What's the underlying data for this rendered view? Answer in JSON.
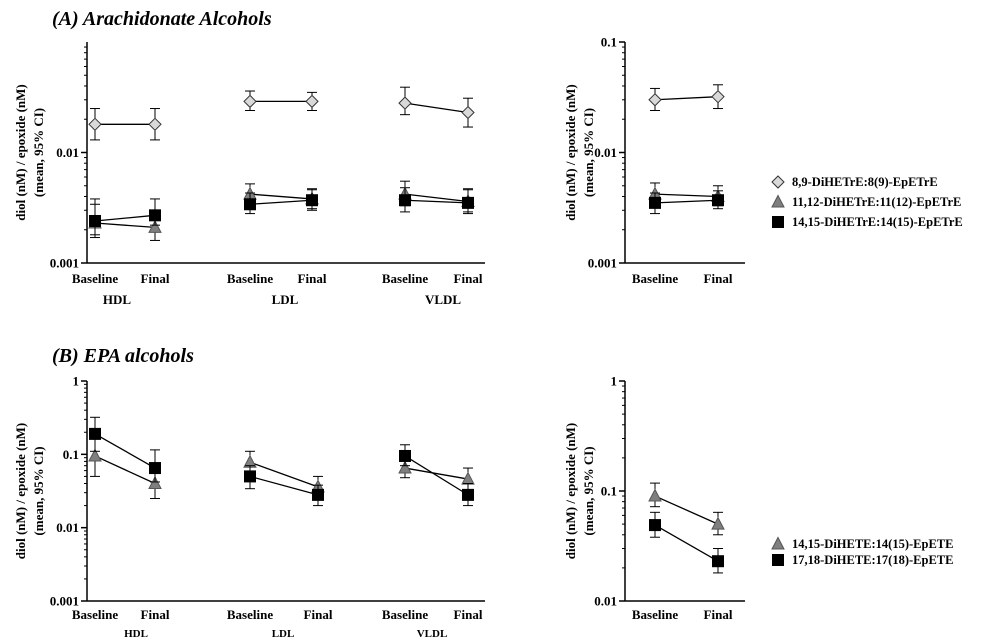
{
  "chart_data": [
    {
      "id": "A-left",
      "type": "scatter",
      "title": "(A) Arachidonate Alcohols",
      "ylabel_line1": "diol (nM) / epoxide (nM)",
      "ylabel_line2": "(mean, 95% CI)",
      "yscale": "log",
      "ylim": [
        0.001,
        0.1
      ],
      "yticks": [
        {
          "v": 0.001,
          "label": "0.001"
        },
        {
          "v": 0.01,
          "label": "0.01"
        }
      ],
      "groups": [
        {
          "name": "HDL",
          "categories": [
            "Baseline",
            "Final"
          ]
        },
        {
          "name": "LDL",
          "categories": [
            "Baseline",
            "Final"
          ]
        },
        {
          "name": "VLDL",
          "categories": [
            "Baseline",
            "Final"
          ]
        }
      ],
      "series": [
        {
          "name": "8,9-DiHETrE:8(9)-EpETrE",
          "marker": "diamond",
          "color": "#d9d9d9",
          "values": [
            [
              0.018,
              0.018
            ],
            [
              0.029,
              0.029
            ],
            [
              0.028,
              0.023
            ]
          ],
          "ci_low": [
            [
              0.013,
              0.013
            ],
            [
              0.024,
              0.024
            ],
            [
              0.022,
              0.017
            ]
          ],
          "ci_high": [
            [
              0.025,
              0.025
            ],
            [
              0.036,
              0.035
            ],
            [
              0.039,
              0.031
            ]
          ]
        },
        {
          "name": "11,12-DiHETrE:11(12)-EpETrE",
          "marker": "triangle",
          "color": "#7f7f7f",
          "values": [
            [
              0.0023,
              0.0021
            ],
            [
              0.0042,
              0.0038
            ],
            [
              0.0042,
              0.0036
            ]
          ],
          "ci_low": [
            [
              0.0018,
              0.0016
            ],
            [
              0.0034,
              0.0031
            ],
            [
              0.0033,
              0.0029
            ]
          ],
          "ci_high": [
            [
              0.0038,
              0.003
            ],
            [
              0.0052,
              0.0047
            ],
            [
              0.0055,
              0.0047
            ]
          ]
        },
        {
          "name": "14,15-DiHETrE:14(15)-EpETrE",
          "marker": "square",
          "color": "#000000",
          "values": [
            [
              0.0024,
              0.0027
            ],
            [
              0.0034,
              0.0037
            ],
            [
              0.0037,
              0.0035
            ]
          ],
          "ci_low": [
            [
              0.0017,
              0.0022
            ],
            [
              0.0028,
              0.003
            ],
            [
              0.0029,
              0.0028
            ]
          ],
          "ci_high": [
            [
              0.0034,
              0.0038
            ],
            [
              0.0043,
              0.0046
            ],
            [
              0.0048,
              0.0046
            ]
          ]
        }
      ]
    },
    {
      "id": "A-right",
      "type": "scatter",
      "ylabel_line1": "diol (nM) / epoxide (nM)",
      "ylabel_line2": "(mean, 95% CI)",
      "yscale": "log",
      "ylim": [
        0.001,
        0.1
      ],
      "yticks": [
        {
          "v": 0.001,
          "label": "0.001"
        },
        {
          "v": 0.01,
          "label": "0.01"
        },
        {
          "v": 0.1,
          "label": "0.1"
        }
      ],
      "groups": [
        {
          "name": "",
          "categories": [
            "Baseline",
            "Final"
          ]
        }
      ],
      "legend": "right",
      "series": [
        {
          "name": "8,9-DiHETrE:8(9)-EpETrE",
          "marker": "diamond",
          "color": "#d9d9d9",
          "values": [
            [
              0.03,
              0.032
            ]
          ],
          "ci_low": [
            [
              0.024,
              0.025
            ]
          ],
          "ci_high": [
            [
              0.038,
              0.041
            ]
          ]
        },
        {
          "name": "11,12-DiHETrE:11(12)-EpETrE",
          "marker": "triangle",
          "color": "#7f7f7f",
          "values": [
            [
              0.0042,
              0.004
            ]
          ],
          "ci_low": [
            [
              0.0035,
              0.0033
            ]
          ],
          "ci_high": [
            [
              0.0053,
              0.005
            ]
          ]
        },
        {
          "name": "14,15-DiHETrE:14(15)-EpETrE",
          "marker": "square",
          "color": "#000000",
          "values": [
            [
              0.0035,
              0.0037
            ]
          ],
          "ci_low": [
            [
              0.0028,
              0.0031
            ]
          ],
          "ci_high": [
            [
              0.0043,
              0.0045
            ]
          ]
        }
      ]
    },
    {
      "id": "B-left",
      "type": "scatter",
      "title": "(B) EPA alcohols",
      "ylabel_line1": "diol (nM) / epoxide (nM)",
      "ylabel_line2": "(mean, 95% CI)",
      "yscale": "log",
      "ylim": [
        0.001,
        1
      ],
      "yticks": [
        {
          "v": 0.001,
          "label": "0.001"
        },
        {
          "v": 0.01,
          "label": "0.01"
        },
        {
          "v": 0.1,
          "label": "0.1"
        },
        {
          "v": 1,
          "label": "1"
        }
      ],
      "groups": [
        {
          "name": "HDL",
          "categories": [
            "Baseline",
            "Final"
          ]
        },
        {
          "name": "LDL",
          "categories": [
            "Baseline",
            "Final"
          ]
        },
        {
          "name": "VLDL",
          "categories": [
            "Baseline",
            "Final"
          ]
        }
      ],
      "series": [
        {
          "name": "14,15-DiHETE:14(15)-EpETE",
          "marker": "triangle",
          "color": "#7f7f7f",
          "values": [
            [
              0.095,
              0.04
            ],
            [
              0.078,
              0.036
            ],
            [
              0.065,
              0.046
            ]
          ],
          "ci_low": [
            [
              0.05,
              0.025
            ],
            [
              0.058,
              0.027
            ],
            [
              0.048,
              0.033
            ]
          ],
          "ci_high": [
            [
              0.18,
              0.065
            ],
            [
              0.11,
              0.05
            ],
            [
              0.09,
              0.065
            ]
          ]
        },
        {
          "name": "17,18-DiHETE:17(18)-EpETE",
          "marker": "square",
          "color": "#000000",
          "values": [
            [
              0.19,
              0.065
            ],
            [
              0.05,
              0.028
            ],
            [
              0.095,
              0.028
            ]
          ],
          "ci_low": [
            [
              0.11,
              0.042
            ],
            [
              0.034,
              0.02
            ],
            [
              0.07,
              0.02
            ]
          ],
          "ci_high": [
            [
              0.32,
              0.115
            ],
            [
              0.07,
              0.038
            ],
            [
              0.135,
              0.04
            ]
          ]
        }
      ]
    },
    {
      "id": "B-right",
      "type": "scatter",
      "ylabel_line1": "diol (nM) / epoxide (nM)",
      "ylabel_line2": "(mean, 95% CI)",
      "yscale": "log",
      "ylim": [
        0.01,
        1
      ],
      "yticks": [
        {
          "v": 0.01,
          "label": "0.01"
        },
        {
          "v": 0.1,
          "label": "0.1"
        },
        {
          "v": 1,
          "label": "1"
        }
      ],
      "groups": [
        {
          "name": "",
          "categories": [
            "Baseline",
            "Final"
          ]
        }
      ],
      "legend": "right",
      "series": [
        {
          "name": "14,15-DiHETE:14(15)-EpETE",
          "marker": "triangle",
          "color": "#7f7f7f",
          "values": [
            [
              0.09,
              0.05
            ]
          ],
          "ci_low": [
            [
              0.072,
              0.04
            ]
          ],
          "ci_high": [
            [
              0.118,
              0.064
            ]
          ]
        },
        {
          "name": "17,18-DiHETE:17(18)-EpETE",
          "marker": "square",
          "color": "#000000",
          "values": [
            [
              0.049,
              0.023
            ]
          ],
          "ci_low": [
            [
              0.038,
              0.018
            ]
          ],
          "ci_high": [
            [
              0.064,
              0.03
            ]
          ]
        }
      ]
    }
  ]
}
